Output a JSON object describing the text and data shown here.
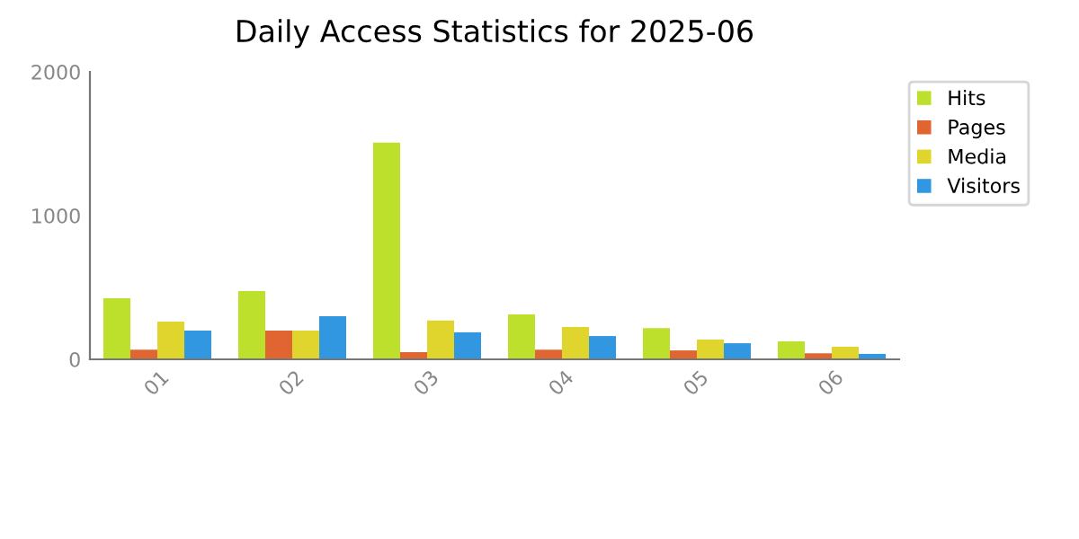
{
  "chart_data": {
    "type": "bar",
    "title": "Daily Access Statistics for 2025-06",
    "categories": [
      "01",
      "02",
      "03",
      "04",
      "05",
      "06"
    ],
    "series": [
      {
        "name": "Hits",
        "color": "#bde02d",
        "values": [
          425,
          475,
          1508,
          312,
          217,
          125
        ]
      },
      {
        "name": "Pages",
        "color": "#e06530",
        "values": [
          67,
          200,
          50,
          67,
          62,
          42
        ]
      },
      {
        "name": "Media",
        "color": "#e0d52d",
        "values": [
          262,
          200,
          270,
          225,
          138,
          88
        ]
      },
      {
        "name": "Visitors",
        "color": "#3097e0",
        "values": [
          200,
          300,
          188,
          162,
          112,
          38
        ]
      }
    ],
    "ylim": [
      0,
      2000
    ],
    "yticks": [
      0,
      1000,
      2000
    ],
    "grid": false,
    "legend": "top right"
  }
}
